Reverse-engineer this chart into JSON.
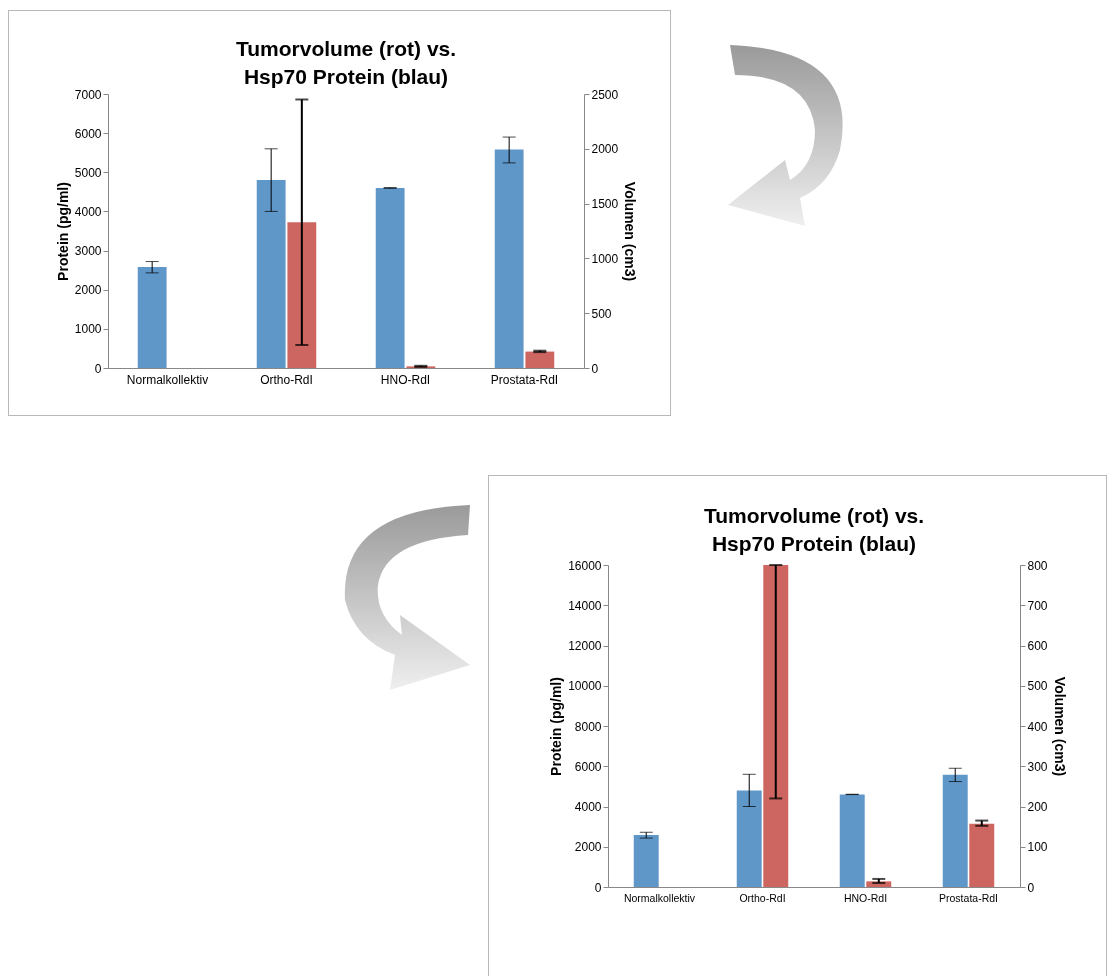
{
  "chart_data": [
    {
      "type": "bar",
      "title": "Tumorvolume (rot) vs.\nHsp70 Protein (blau)",
      "ylabel": "Protein (pg/ml)",
      "y2label": "Volumen (cm3)",
      "categories": [
        "Normalkollektiv",
        "Ortho-RdI",
        "HNO-RdI",
        "Prostata-RdI"
      ],
      "series": [
        {
          "color": "#6097c9",
          "values": [
            2580,
            4800,
            4600,
            5580
          ],
          "errors": [
            [
              2430,
              2720
            ],
            [
              4000,
              5600
            ],
            [
              4590,
              4610
            ],
            [
              5240,
              5900
            ]
          ]
        },
        {
          "color": "#cd6660",
          "axis": "y2",
          "values": [
            null,
            1330,
            15,
            150
          ],
          "errors": [
            null,
            [
              210,
              2450
            ],
            [
              10,
              20
            ],
            [
              145,
              158
            ]
          ]
        }
      ],
      "ylim": [
        0,
        7000
      ],
      "yticks": [
        0,
        1000,
        2000,
        3000,
        4000,
        5000,
        6000,
        7000
      ],
      "y2lim": [
        0,
        2500
      ],
      "y2ticks": [
        0,
        500,
        1000,
        1500,
        2000,
        2500
      ]
    },
    {
      "type": "bar",
      "title": "Tumorvolume (rot) vs.\nHsp70 Protein (blau)",
      "ylabel": "Protein (pg/ml)",
      "y2label": "Volumen (cm3)",
      "categories": [
        "Normalkollektiv",
        "Ortho-RdI",
        "HNO-RdI",
        "Prostata-RdI"
      ],
      "series": [
        {
          "color": "#6097c9",
          "values": [
            2580,
            4800,
            4600,
            5580
          ],
          "errors": [
            [
              2430,
              2720
            ],
            [
              4000,
              5600
            ],
            [
              4590,
              4610
            ],
            [
              5240,
              5900
            ]
          ]
        },
        {
          "color": "#cd6660",
          "axis": "y2",
          "values": [
            null,
            800,
            14,
            157
          ],
          "errors": [
            null,
            [
              220,
              800
            ],
            [
              10,
              20
            ],
            [
              152,
              165
            ]
          ]
        }
      ],
      "ylim": [
        0,
        16000
      ],
      "yticks": [
        0,
        2000,
        4000,
        6000,
        8000,
        10000,
        12000,
        14000,
        16000
      ],
      "y2lim": [
        0,
        800
      ],
      "y2ticks": [
        0,
        100,
        200,
        300,
        400,
        500,
        600,
        700,
        800
      ]
    }
  ]
}
